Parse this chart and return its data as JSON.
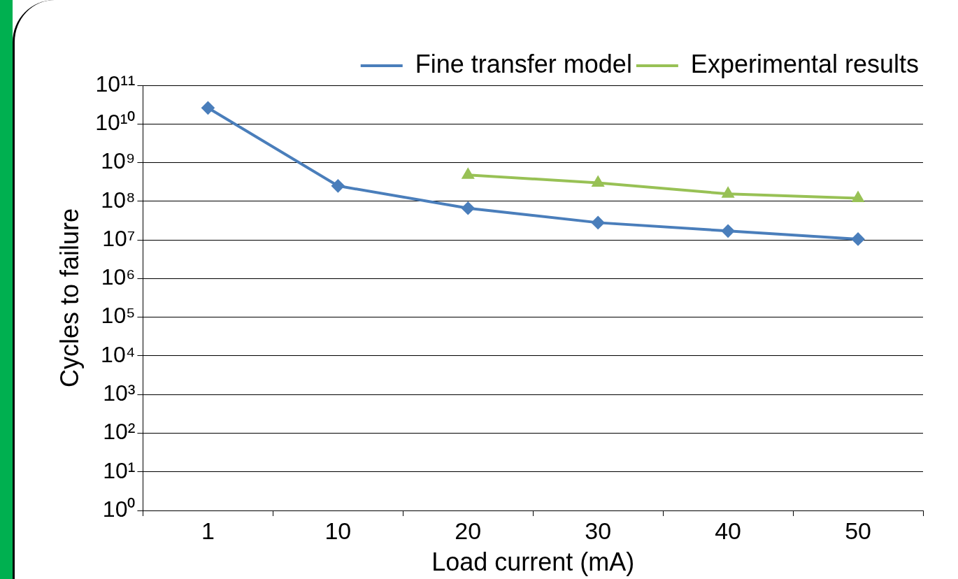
{
  "chart_data": {
    "type": "line",
    "xlabel": "Load current (mA)",
    "ylabel": "Cycles to failure",
    "categories": [
      "1",
      "10",
      "20",
      "30",
      "40",
      "50"
    ],
    "series": [
      {
        "name": "Fine transfer model",
        "color": "#4a7ebb",
        "marker": "diamond",
        "values": [
          26000000000.0,
          250000000.0,
          66000000.0,
          28000000.0,
          17000000.0,
          10500000.0
        ]
      },
      {
        "name": "Experimental results",
        "color": "#98c155",
        "marker": "triangle",
        "values": [
          null,
          null,
          480000000.0,
          300000000.0,
          155000000.0,
          120000000.0
        ]
      }
    ],
    "log": "y",
    "ylim": [
      1,
      100000000000.0
    ],
    "yticks": [
      {
        "value": 1,
        "label": "10⁰"
      },
      {
        "value": 10,
        "label": "10¹"
      },
      {
        "value": 100,
        "label": "10²"
      },
      {
        "value": 1000,
        "label": "10³"
      },
      {
        "value": 10000,
        "label": "10⁴"
      },
      {
        "value": 100000,
        "label": "10⁵"
      },
      {
        "value": 1000000,
        "label": "10⁶"
      },
      {
        "value": 10000000,
        "label": "10⁷"
      },
      {
        "value": 100000000,
        "label": "10⁸"
      },
      {
        "value": 1000000000,
        "label": "10⁹"
      },
      {
        "value": 10000000000,
        "label": "10¹⁰"
      },
      {
        "value": 100000000000,
        "label": "10¹¹"
      }
    ],
    "grid": "y",
    "legend": "top right"
  }
}
